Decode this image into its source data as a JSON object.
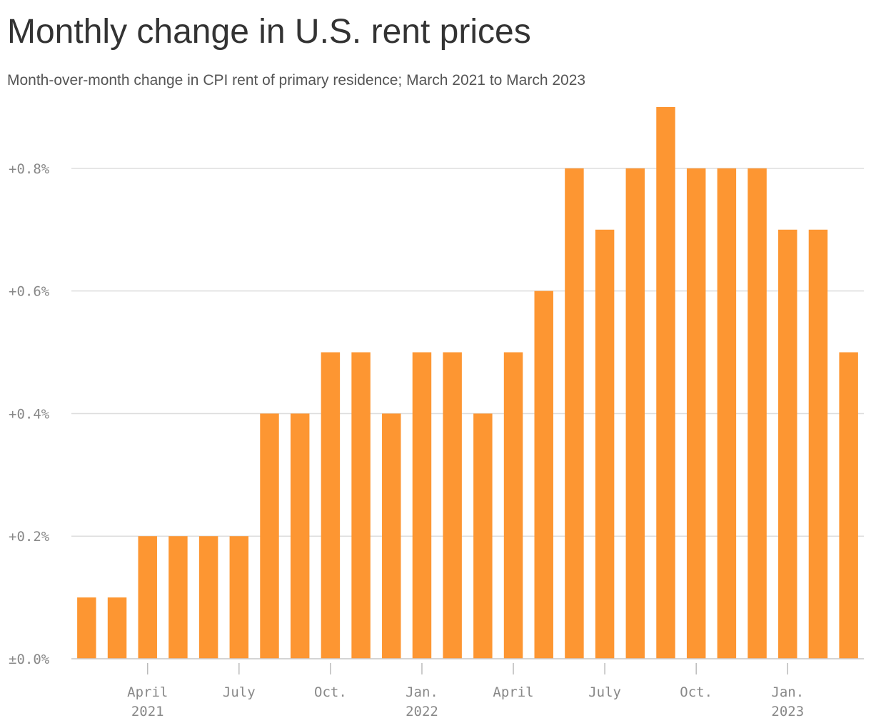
{
  "chart_data": {
    "type": "bar",
    "title": "Monthly change in U.S. rent prices",
    "subtitle": "Month-over-month change in CPI rent of primary residence; March 2021 to March 2023",
    "categories": [
      null,
      null,
      [
        "April",
        "2021"
      ],
      null,
      null,
      [
        "July"
      ],
      null,
      null,
      [
        "Oct."
      ],
      null,
      null,
      [
        "Jan.",
        "2022"
      ],
      null,
      null,
      [
        "April"
      ],
      null,
      null,
      [
        "July"
      ],
      null,
      null,
      [
        "Oct."
      ],
      null,
      null,
      [
        "Jan.",
        "2023"
      ],
      null,
      null
    ],
    "values": [
      0.1,
      0.1,
      0.2,
      0.2,
      0.2,
      0.2,
      0.4,
      0.4,
      0.5,
      0.5,
      0.4,
      0.5,
      0.5,
      0.4,
      0.5,
      0.6,
      0.8,
      0.7,
      0.8,
      0.9,
      0.8,
      0.8,
      0.8,
      0.7,
      0.7,
      0.5
    ],
    "color": "#fd9632",
    "ylim": [
      0,
      0.9
    ],
    "yticks": [
      {
        "value": 0,
        "label": "±0.0%"
      },
      {
        "value": 0.2,
        "label": "+0.2%"
      },
      {
        "value": 0.4,
        "label": "+0.4%"
      },
      {
        "value": 0.6,
        "label": "+0.6%"
      },
      {
        "value": 0.8,
        "label": "+0.8%"
      }
    ],
    "grid": true
  }
}
